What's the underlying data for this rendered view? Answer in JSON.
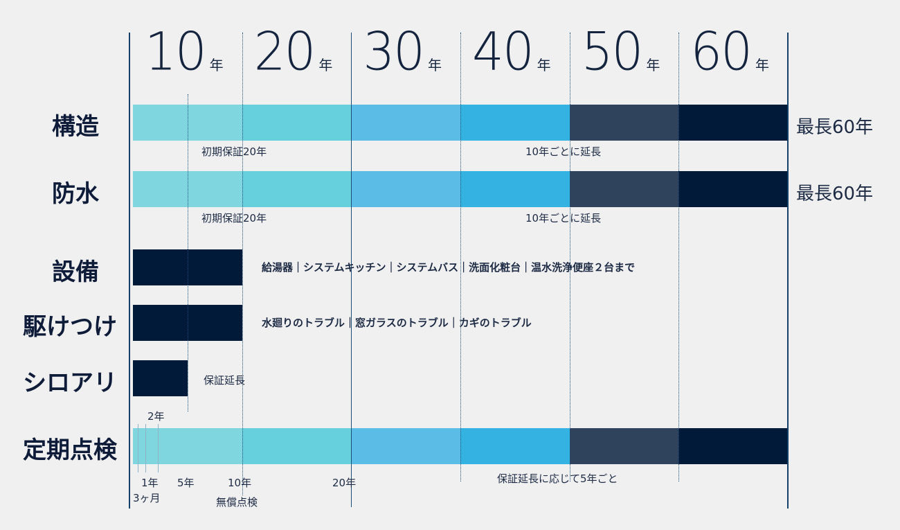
{
  "colors": {
    "c1": "#7fd6de",
    "c2": "#66d1dc",
    "c3": "#5bbde6",
    "c4": "#34b3e3",
    "c5": "#30435d",
    "c6": "#021a39",
    "navy": "#021a39"
  },
  "chart_data": {
    "type": "bar",
    "subtype": "horizontal-timeline",
    "x_axis": {
      "unit": "年",
      "ticks": [
        {
          "value": 10,
          "label": "10",
          "unit": "年"
        },
        {
          "value": 20,
          "label": "20",
          "unit": "年"
        },
        {
          "value": 30,
          "label": "30",
          "unit": "年"
        },
        {
          "value": 40,
          "label": "40",
          "unit": "年"
        },
        {
          "value": 50,
          "label": "50",
          "unit": "年"
        },
        {
          "value": 60,
          "label": "60",
          "unit": "年"
        }
      ],
      "xlim": [
        0,
        60
      ]
    },
    "rows": [
      {
        "label": "構造",
        "segments": [
          {
            "start": 0,
            "end": 10,
            "color": "c1"
          },
          {
            "start": 10,
            "end": 20,
            "color": "c2"
          },
          {
            "start": 20,
            "end": 30,
            "color": "c3"
          },
          {
            "start": 30,
            "end": 40,
            "color": "c4"
          },
          {
            "start": 40,
            "end": 50,
            "color": "c5"
          },
          {
            "start": 50,
            "end": 60,
            "color": "c6"
          }
        ],
        "notes": [
          {
            "text": "初期保証20年",
            "at": 5
          },
          {
            "text": "10年ごとに延長",
            "at": 36
          }
        ],
        "right_label": "最長60年"
      },
      {
        "label": "防水",
        "segments": [
          {
            "start": 0,
            "end": 10,
            "color": "c1"
          },
          {
            "start": 10,
            "end": 20,
            "color": "c2"
          },
          {
            "start": 20,
            "end": 30,
            "color": "c3"
          },
          {
            "start": 30,
            "end": 40,
            "color": "c4"
          },
          {
            "start": 40,
            "end": 50,
            "color": "c5"
          },
          {
            "start": 50,
            "end": 60,
            "color": "c6"
          }
        ],
        "notes": [
          {
            "text": "初期保証20年",
            "at": 5
          },
          {
            "text": "10年ごとに延長",
            "at": 36
          }
        ],
        "right_label": "最長60年"
      },
      {
        "label": "設備",
        "segments": [
          {
            "start": 0,
            "end": 10,
            "color": "navy"
          }
        ],
        "inline_note": "給湯器｜システムキッチン｜システムバス｜洗面化粧台｜温水洗浄便座２台まで"
      },
      {
        "label": "駆けつけ",
        "segments": [
          {
            "start": 0,
            "end": 10,
            "color": "navy"
          }
        ],
        "inline_note": "水廻りのトラブル｜窓ガラスのトラブル｜カギのトラブル"
      },
      {
        "label": "シロアリ",
        "segments": [
          {
            "start": 0,
            "end": 5,
            "color": "navy"
          }
        ],
        "inline_note": "保証延長",
        "above_label": "2年"
      },
      {
        "label": "定期点検",
        "segments": [
          {
            "start": 0,
            "end": 10,
            "color": "c1"
          },
          {
            "start": 10,
            "end": 20,
            "color": "c2"
          },
          {
            "start": 20,
            "end": 30,
            "color": "c3"
          },
          {
            "start": 30,
            "end": 40,
            "color": "c4"
          },
          {
            "start": 40,
            "end": 50,
            "color": "c5"
          },
          {
            "start": 50,
            "end": 60,
            "color": "c6"
          }
        ],
        "inspection_ticks": [
          0.25,
          1,
          2
        ],
        "below_labels": [
          {
            "text": "1年",
            "at": 2
          },
          {
            "text": "3ヶ月",
            "at": 1.5
          },
          {
            "text": "5年",
            "at": 5
          },
          {
            "text": "10年",
            "at": 10
          },
          {
            "text": "無償点検",
            "at": 10
          },
          {
            "text": "20年",
            "at": 20
          }
        ],
        "note": {
          "text": "保証延長に応じて5年ごと",
          "at": 47
        }
      }
    ]
  }
}
